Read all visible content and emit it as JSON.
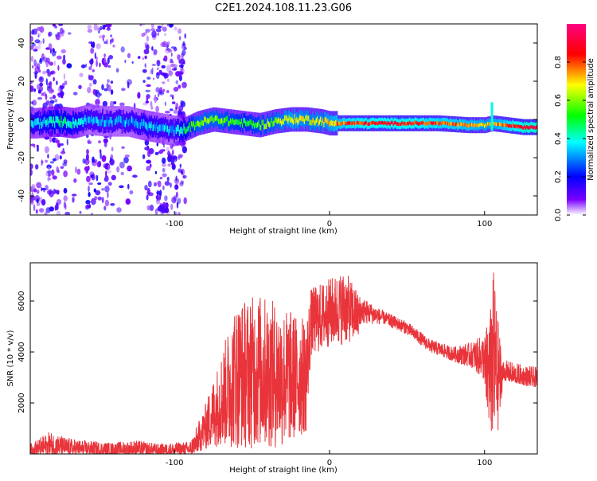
{
  "title": "C2E1.2024.108.11.23.G06",
  "colors": {
    "snr_line": "#e8343a",
    "axis": "#000000",
    "background": "#ffffff"
  },
  "chart_data": [
    {
      "type": "heatmap",
      "xlabel": "Height of straight line (km)",
      "ylabel": "Frequency (Hz)",
      "xlim": [
        -193,
        134
      ],
      "ylim": [
        -50,
        50
      ],
      "xticks": [
        -100,
        0,
        100
      ],
      "yticks": [
        -40,
        -20,
        0,
        20,
        40
      ],
      "colorbar": {
        "label": "Normalized spectral amplitude",
        "range": [
          0.0,
          1.0
        ],
        "ticks": [
          0.0,
          0.2,
          0.4,
          0.6,
          0.8
        ],
        "colormap": [
          "#ffffff",
          "#7a00ff",
          "#0000ff",
          "#00ffff",
          "#00ff00",
          "#ffff00",
          "#ff0000",
          "#ff0080"
        ]
      },
      "noise_region_x": [
        -193,
        -93
      ],
      "noise_gap_regions_x": [
        [
          -170,
          -157
        ],
        [
          -140,
          -120
        ]
      ],
      "ridge": [
        {
          "x": -190,
          "f": -2,
          "amp": 0.35
        },
        {
          "x": -175,
          "f": -1,
          "amp": 0.45
        },
        {
          "x": -165,
          "f": -2,
          "amp": 0.4
        },
        {
          "x": -155,
          "f": 0,
          "amp": 0.3
        },
        {
          "x": -145,
          "f": -1,
          "amp": 0.3
        },
        {
          "x": -130,
          "f": -1,
          "amp": 0.3
        },
        {
          "x": -120,
          "f": -3,
          "amp": 0.35
        },
        {
          "x": -100,
          "f": -6,
          "amp": 0.3
        },
        {
          "x": -93,
          "f": -5,
          "amp": 0.45
        },
        {
          "x": -85,
          "f": -2,
          "amp": 0.6
        },
        {
          "x": -75,
          "f": 0,
          "amp": 0.6
        },
        {
          "x": -65,
          "f": -1,
          "amp": 0.55
        },
        {
          "x": -55,
          "f": -2,
          "amp": 0.5
        },
        {
          "x": -45,
          "f": -3,
          "amp": 0.55
        },
        {
          "x": -35,
          "f": -1,
          "amp": 0.6
        },
        {
          "x": -25,
          "f": 0,
          "amp": 0.7
        },
        {
          "x": -15,
          "f": 0,
          "amp": 0.65
        },
        {
          "x": -5,
          "f": -1,
          "amp": 0.65
        },
        {
          "x": 0,
          "f": -2,
          "amp": 0.7
        },
        {
          "x": 10,
          "f": -2,
          "amp": 0.8
        },
        {
          "x": 30,
          "f": -2,
          "amp": 0.85
        },
        {
          "x": 50,
          "f": -2,
          "amp": 0.85
        },
        {
          "x": 70,
          "f": -2,
          "amp": 0.8
        },
        {
          "x": 90,
          "f": -3,
          "amp": 0.75
        },
        {
          "x": 100,
          "f": -3,
          "amp": 0.7
        },
        {
          "x": 105,
          "f": -2,
          "amp": 0.7
        },
        {
          "x": 115,
          "f": -3,
          "amp": 0.8
        },
        {
          "x": 125,
          "f": -4,
          "amp": 0.9
        },
        {
          "x": 134,
          "f": -4,
          "amp": 0.9
        }
      ]
    },
    {
      "type": "line",
      "xlabel": "Height of straight line (km)",
      "ylabel": "SNR (10 * v/v)",
      "xlim": [
        -193,
        134
      ],
      "ylim": [
        0,
        7500
      ],
      "xticks": [
        -100,
        0,
        100
      ],
      "yticks": [
        2000,
        4000,
        6000
      ],
      "series": [
        {
          "color": "#e8343a",
          "envelope": [
            {
              "x": -193,
              "lo": 0,
              "hi": 400
            },
            {
              "x": -180,
              "lo": 0,
              "hi": 900
            },
            {
              "x": -170,
              "lo": 0,
              "hi": 650
            },
            {
              "x": -160,
              "lo": 0,
              "hi": 550
            },
            {
              "x": -140,
              "lo": 0,
              "hi": 450
            },
            {
              "x": -125,
              "lo": 0,
              "hi": 550
            },
            {
              "x": -110,
              "lo": 0,
              "hi": 400
            },
            {
              "x": -90,
              "lo": 0,
              "hi": 500
            },
            {
              "x": -82,
              "lo": 100,
              "hi": 1600
            },
            {
              "x": -72,
              "lo": 300,
              "hi": 3500
            },
            {
              "x": -60,
              "lo": 200,
              "hi": 6000
            },
            {
              "x": -45,
              "lo": 200,
              "hi": 6300
            },
            {
              "x": -30,
              "lo": 200,
              "hi": 5800
            },
            {
              "x": -15,
              "lo": 800,
              "hi": 5300
            },
            {
              "x": -12,
              "lo": 3800,
              "hi": 6500
            },
            {
              "x": 0,
              "lo": 4200,
              "hi": 6900
            },
            {
              "x": 10,
              "lo": 4300,
              "hi": 7200
            },
            {
              "x": 20,
              "lo": 4500,
              "hi": 6200
            },
            {
              "x": 35,
              "lo": 4800,
              "hi": 5600
            },
            {
              "x": 50,
              "lo": 4400,
              "hi": 5200
            },
            {
              "x": 65,
              "lo": 3700,
              "hi": 4500
            },
            {
              "x": 80,
              "lo": 3300,
              "hi": 4200
            },
            {
              "x": 92,
              "lo": 2800,
              "hi": 4400
            },
            {
              "x": 100,
              "lo": 1800,
              "hi": 4700
            },
            {
              "x": 104,
              "lo": 600,
              "hi": 5800
            },
            {
              "x": 106,
              "lo": 300,
              "hi": 7400
            },
            {
              "x": 108,
              "lo": 400,
              "hi": 5600
            },
            {
              "x": 112,
              "lo": 2900,
              "hi": 3700
            },
            {
              "x": 125,
              "lo": 2700,
              "hi": 3500
            },
            {
              "x": 134,
              "lo": 2600,
              "hi": 3400
            }
          ]
        }
      ]
    }
  ]
}
